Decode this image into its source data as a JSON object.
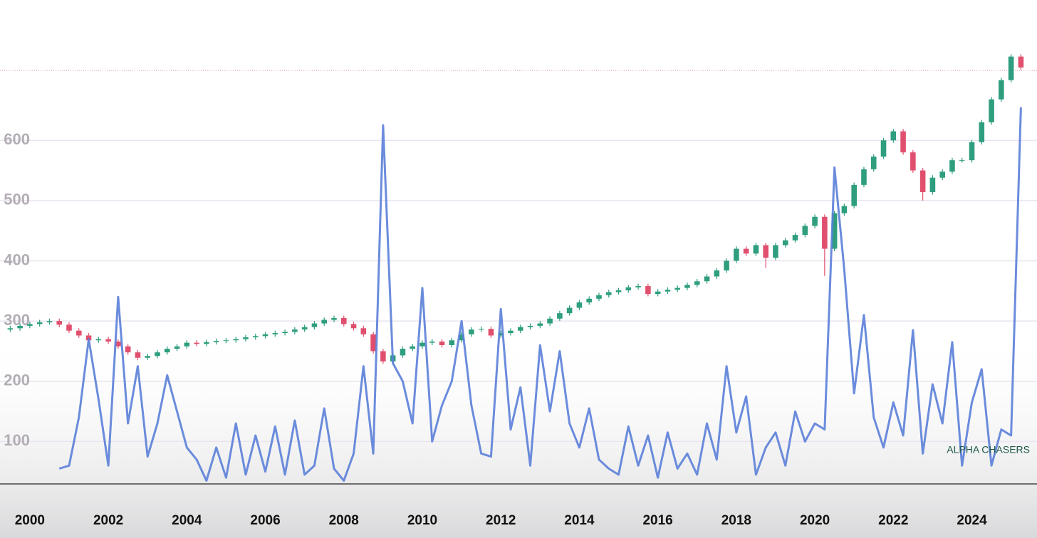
{
  "chart_data": {
    "type": "candlestick",
    "watermark": "ALPHA CHASERS",
    "xlim": [
      1999.24,
      2025.66
    ],
    "ylim": [
      29.6,
      833
    ],
    "xticks": [
      2000,
      2002,
      2004,
      2006,
      2008,
      2010,
      2012,
      2014,
      2016,
      2018,
      2020,
      2022,
      2024
    ],
    "yticks": [
      100,
      200,
      300,
      400,
      500,
      600
    ],
    "grid": true,
    "price_line": 716,
    "x": [
      1999.5,
      1999.75,
      2000,
      2000.25,
      2000.5,
      2000.75,
      2001,
      2001.25,
      2001.5,
      2001.75,
      2002,
      2002.25,
      2002.5,
      2002.75,
      2003,
      2003.25,
      2003.5,
      2003.75,
      2004,
      2004.25,
      2004.5,
      2004.75,
      2005,
      2005.25,
      2005.5,
      2005.75,
      2006,
      2006.25,
      2006.5,
      2006.75,
      2007,
      2007.25,
      2007.5,
      2007.75,
      2008,
      2008.25,
      2008.5,
      2008.75,
      2009,
      2009.25,
      2009.5,
      2009.75,
      2010,
      2010.25,
      2010.5,
      2010.75,
      2011,
      2011.25,
      2011.5,
      2011.75,
      2012,
      2012.25,
      2012.5,
      2012.75,
      2013,
      2013.25,
      2013.5,
      2013.75,
      2014,
      2014.25,
      2014.5,
      2014.75,
      2015,
      2015.25,
      2015.5,
      2015.75,
      2016,
      2016.25,
      2016.5,
      2016.75,
      2017,
      2017.25,
      2017.5,
      2017.75,
      2018,
      2018.25,
      2018.5,
      2018.75,
      2019,
      2019.25,
      2019.5,
      2019.75,
      2020,
      2020.25,
      2020.5,
      2020.75,
      2021,
      2021.25,
      2021.5,
      2021.75,
      2022,
      2022.25,
      2022.5,
      2022.75,
      2023,
      2023.25,
      2023.5,
      2023.75,
      2024,
      2024.25,
      2024.5,
      2024.75,
      2025,
      2025.25
    ],
    "candles": {
      "up_color": "#2e9e7e",
      "down_color": "#e0506e",
      "open": [
        286,
        288,
        292,
        295,
        298,
        300,
        294,
        284,
        276,
        268,
        270,
        266,
        258,
        248,
        239,
        242,
        248,
        254,
        258,
        264,
        262,
        265,
        267,
        268,
        270,
        273,
        275,
        278,
        280,
        282,
        286,
        290,
        296,
        302,
        305,
        295,
        288,
        278,
        250,
        233,
        243,
        254,
        258,
        264,
        266,
        260,
        268,
        278,
        286,
        287,
        276,
        280,
        284,
        290,
        292,
        296,
        304,
        313,
        322,
        331,
        337,
        343,
        348,
        351,
        356,
        358,
        345,
        349,
        352,
        355,
        360,
        366,
        374,
        384,
        400,
        420,
        412,
        426,
        405,
        426,
        434,
        443,
        458,
        473,
        420,
        479,
        491,
        526,
        552,
        573,
        600,
        615,
        580,
        550,
        514,
        538,
        548,
        567,
        567,
        597,
        630,
        668,
        700,
        739
      ],
      "high": [
        292,
        296,
        299,
        302,
        304,
        304,
        298,
        288,
        280,
        274,
        274,
        270,
        262,
        252,
        246,
        252,
        258,
        262,
        268,
        268,
        269,
        271,
        272,
        274,
        277,
        279,
        282,
        284,
        286,
        290,
        294,
        300,
        306,
        309,
        309,
        299,
        292,
        282,
        254,
        247,
        258,
        262,
        268,
        270,
        270,
        272,
        282,
        290,
        291,
        291,
        284,
        288,
        294,
        296,
        300,
        308,
        317,
        326,
        335,
        341,
        347,
        352,
        355,
        360,
        362,
        362,
        353,
        356,
        359,
        364,
        370,
        378,
        388,
        404,
        424,
        424,
        430,
        430,
        430,
        438,
        447,
        462,
        477,
        477,
        483,
        495,
        530,
        556,
        577,
        604,
        619,
        619,
        584,
        554,
        542,
        552,
        571,
        571,
        601,
        634,
        672,
        704,
        743,
        743
      ],
      "low": [
        282,
        284,
        288,
        291,
        294,
        290,
        280,
        272,
        264,
        264,
        262,
        254,
        244,
        235,
        235,
        238,
        244,
        250,
        254,
        258,
        258,
        261,
        263,
        264,
        266,
        269,
        271,
        274,
        276,
        278,
        282,
        286,
        292,
        298,
        291,
        284,
        274,
        246,
        229,
        229,
        239,
        250,
        254,
        260,
        256,
        256,
        264,
        274,
        282,
        272,
        272,
        276,
        280,
        286,
        288,
        292,
        300,
        309,
        318,
        327,
        333,
        339,
        344,
        347,
        352,
        341,
        341,
        345,
        348,
        351,
        356,
        362,
        370,
        380,
        396,
        408,
        408,
        388,
        401,
        422,
        430,
        439,
        454,
        375,
        416,
        475,
        487,
        522,
        548,
        569,
        596,
        576,
        546,
        500,
        510,
        534,
        544,
        563,
        563,
        593,
        626,
        664,
        696,
        717
      ],
      "close": [
        288,
        292,
        295,
        298,
        300,
        294,
        284,
        276,
        268,
        270,
        266,
        258,
        248,
        239,
        242,
        248,
        254,
        258,
        264,
        262,
        265,
        267,
        268,
        270,
        273,
        275,
        278,
        280,
        282,
        286,
        290,
        296,
        302,
        305,
        295,
        288,
        278,
        250,
        233,
        243,
        254,
        258,
        264,
        266,
        260,
        268,
        278,
        286,
        287,
        276,
        280,
        284,
        290,
        292,
        296,
        304,
        313,
        322,
        331,
        337,
        343,
        348,
        351,
        356,
        358,
        345,
        349,
        352,
        355,
        360,
        366,
        374,
        384,
        400,
        420,
        412,
        426,
        405,
        426,
        434,
        443,
        458,
        473,
        420,
        479,
        491,
        526,
        552,
        573,
        600,
        615,
        580,
        550,
        514,
        538,
        548,
        567,
        567,
        597,
        630,
        668,
        700,
        739,
        721
      ]
    },
    "line": {
      "color": "#5b7fd8",
      "values": [
        null,
        null,
        null,
        null,
        null,
        55,
        60,
        140,
        270,
        170,
        60,
        340,
        130,
        225,
        75,
        130,
        210,
        150,
        90,
        70,
        35,
        90,
        40,
        130,
        45,
        110,
        50,
        125,
        45,
        135,
        45,
        60,
        155,
        55,
        35,
        80,
        225,
        80,
        625,
        230,
        200,
        130,
        355,
        100,
        160,
        200,
        300,
        160,
        80,
        75,
        320,
        120,
        190,
        60,
        260,
        150,
        250,
        130,
        90,
        155,
        70,
        55,
        45,
        125,
        60,
        110,
        40,
        115,
        55,
        80,
        45,
        130,
        70,
        225,
        115,
        175,
        45,
        90,
        115,
        60,
        150,
        100,
        130,
        120,
        555,
        385,
        180,
        310,
        140,
        90,
        165,
        110,
        285,
        80,
        195,
        130,
        265,
        60,
        165,
        220,
        60,
        120,
        110,
        655
      ]
    }
  }
}
